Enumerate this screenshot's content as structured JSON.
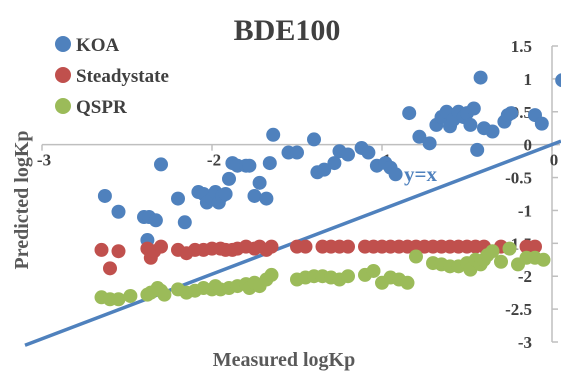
{
  "chart_data": {
    "type": "scatter",
    "title": "BDE100",
    "xlabel": "Measured logKp",
    "ylabel": "Predicted logKp",
    "xlim": [
      -3,
      0
    ],
    "ylim": [
      -3,
      1.5
    ],
    "x_ticks": [
      "-3",
      "-2",
      "-1",
      "0"
    ],
    "y_ticks": [
      "1.5",
      "1",
      "0.5",
      "0",
      "-0.5",
      "-1",
      "-1.5",
      "-2",
      "-2.5",
      "-3"
    ],
    "grid": false,
    "legend_position": "top-left",
    "annotation": "y=x",
    "reference_line": {
      "from": [
        -3.1,
        -3.05
      ],
      "to": [
        0,
        0
      ]
    },
    "colors": {
      "KOA": "#4f81bd",
      "Steadystate": "#c0504d",
      "QSPR": "#9bbb59",
      "line": "#4f81bd"
    },
    "series": [
      {
        "name": "KOA",
        "points": [
          [
            -2.63,
            -0.78
          ],
          [
            -2.55,
            -1.02
          ],
          [
            -2.4,
            -1.1
          ],
          [
            -2.37,
            -1.1
          ],
          [
            -2.33,
            -1.15
          ],
          [
            -2.38,
            -1.45
          ],
          [
            -2.3,
            -0.3
          ],
          [
            -2.2,
            -0.82
          ],
          [
            -2.16,
            -1.18
          ],
          [
            -2.08,
            -0.72
          ],
          [
            -2.05,
            -0.75
          ],
          [
            -2.03,
            -0.88
          ],
          [
            -2.0,
            -0.82
          ],
          [
            -1.98,
            -0.72
          ],
          [
            -1.96,
            -0.88
          ],
          [
            -1.94,
            -0.78
          ],
          [
            -1.92,
            -0.75
          ],
          [
            -1.9,
            -0.52
          ],
          [
            -1.88,
            -0.28
          ],
          [
            -1.85,
            -0.32
          ],
          [
            -1.8,
            -0.32
          ],
          [
            -1.78,
            -0.32
          ],
          [
            -1.75,
            -0.78
          ],
          [
            -1.72,
            -0.58
          ],
          [
            -1.68,
            -0.82
          ],
          [
            -1.66,
            -0.28
          ],
          [
            -1.64,
            0.15
          ],
          [
            -1.55,
            -0.12
          ],
          [
            -1.5,
            -0.12
          ],
          [
            -1.4,
            0.08
          ],
          [
            -1.38,
            -0.42
          ],
          [
            -1.34,
            -0.38
          ],
          [
            -1.28,
            -0.28
          ],
          [
            -1.25,
            -0.1
          ],
          [
            -1.2,
            -0.15
          ],
          [
            -1.12,
            -0.05
          ],
          [
            -1.08,
            -0.12
          ],
          [
            -1.03,
            -0.32
          ],
          [
            -0.98,
            -0.28
          ],
          [
            -0.95,
            -0.35
          ],
          [
            -0.92,
            -0.45
          ],
          [
            -0.84,
            0.48
          ],
          [
            -0.78,
            0.12
          ],
          [
            -0.72,
            0.02
          ],
          [
            -0.68,
            0.3
          ],
          [
            -0.65,
            0.42
          ],
          [
            -0.62,
            0.5
          ],
          [
            -0.6,
            0.28
          ],
          [
            -0.58,
            0.38
          ],
          [
            -0.55,
            0.5
          ],
          [
            -0.52,
            0.42
          ],
          [
            -0.5,
            0.48
          ],
          [
            -0.48,
            0.3
          ],
          [
            -0.46,
            0.55
          ],
          [
            -0.44,
            -0.08
          ],
          [
            -0.42,
            1.02
          ],
          [
            -0.4,
            0.25
          ],
          [
            -0.35,
            0.2
          ],
          [
            -0.28,
            0.35
          ],
          [
            -0.26,
            0.45
          ],
          [
            -0.24,
            0.48
          ],
          [
            -0.1,
            0.45
          ],
          [
            -0.06,
            0.32
          ],
          [
            0.06,
            0.98
          ]
        ]
      },
      {
        "name": "Steadystate",
        "points": [
          [
            -2.65,
            -1.6
          ],
          [
            -2.6,
            -1.88
          ],
          [
            -2.55,
            -1.62
          ],
          [
            -2.38,
            -1.58
          ],
          [
            -2.36,
            -1.72
          ],
          [
            -2.34,
            -1.62
          ],
          [
            -2.3,
            -1.55
          ],
          [
            -2.2,
            -1.6
          ],
          [
            -2.15,
            -1.65
          ],
          [
            -2.1,
            -1.6
          ],
          [
            -2.05,
            -1.6
          ],
          [
            -2.0,
            -1.58
          ],
          [
            -1.95,
            -1.58
          ],
          [
            -1.92,
            -1.6
          ],
          [
            -1.88,
            -1.6
          ],
          [
            -1.85,
            -1.58
          ],
          [
            -1.8,
            -1.55
          ],
          [
            -1.75,
            -1.58
          ],
          [
            -1.72,
            -1.55
          ],
          [
            -1.68,
            -1.6
          ],
          [
            -1.65,
            -1.55
          ],
          [
            -1.5,
            -1.55
          ],
          [
            -1.45,
            -1.55
          ],
          [
            -1.35,
            -1.55
          ],
          [
            -1.3,
            -1.55
          ],
          [
            -1.25,
            -1.55
          ],
          [
            -1.2,
            -1.55
          ],
          [
            -1.1,
            -1.55
          ],
          [
            -1.05,
            -1.55
          ],
          [
            -1.0,
            -1.55
          ],
          [
            -0.95,
            -1.55
          ],
          [
            -0.9,
            -1.55
          ],
          [
            -0.85,
            -1.55
          ],
          [
            -0.8,
            -1.55
          ],
          [
            -0.75,
            -1.55
          ],
          [
            -0.7,
            -1.55
          ],
          [
            -0.65,
            -1.55
          ],
          [
            -0.6,
            -1.55
          ],
          [
            -0.55,
            -1.55
          ],
          [
            -0.5,
            -1.55
          ],
          [
            -0.45,
            -1.55
          ],
          [
            -0.4,
            -1.55
          ],
          [
            -0.3,
            -1.55
          ],
          [
            -0.15,
            -1.55
          ],
          [
            -0.1,
            -1.55
          ]
        ]
      },
      {
        "name": "QSPR",
        "points": [
          [
            -2.65,
            -2.32
          ],
          [
            -2.6,
            -2.35
          ],
          [
            -2.55,
            -2.35
          ],
          [
            -2.48,
            -2.3
          ],
          [
            -2.38,
            -2.28
          ],
          [
            -2.36,
            -2.25
          ],
          [
            -2.32,
            -2.18
          ],
          [
            -2.3,
            -2.22
          ],
          [
            -2.28,
            -2.28
          ],
          [
            -2.2,
            -2.2
          ],
          [
            -2.15,
            -2.25
          ],
          [
            -2.1,
            -2.22
          ],
          [
            -2.05,
            -2.18
          ],
          [
            -2.0,
            -2.2
          ],
          [
            -1.98,
            -2.15
          ],
          [
            -1.95,
            -2.2
          ],
          [
            -1.9,
            -2.18
          ],
          [
            -1.85,
            -2.15
          ],
          [
            -1.8,
            -2.12
          ],
          [
            -1.78,
            -2.18
          ],
          [
            -1.75,
            -2.1
          ],
          [
            -1.72,
            -2.15
          ],
          [
            -1.68,
            -2.05
          ],
          [
            -1.65,
            -1.98
          ],
          [
            -1.5,
            -2.05
          ],
          [
            -1.45,
            -2.02
          ],
          [
            -1.4,
            -2.0
          ],
          [
            -1.35,
            -2.0
          ],
          [
            -1.3,
            -2.02
          ],
          [
            -1.25,
            -2.05
          ],
          [
            -1.2,
            -2.0
          ],
          [
            -1.1,
            -1.98
          ],
          [
            -1.05,
            -1.92
          ],
          [
            -1.0,
            -2.1
          ],
          [
            -0.95,
            -2.02
          ],
          [
            -0.9,
            -2.05
          ],
          [
            -0.85,
            -2.1
          ],
          [
            -0.8,
            -1.7
          ],
          [
            -0.7,
            -1.8
          ],
          [
            -0.65,
            -1.82
          ],
          [
            -0.6,
            -1.85
          ],
          [
            -0.55,
            -1.85
          ],
          [
            -0.5,
            -1.8
          ],
          [
            -0.48,
            -1.9
          ],
          [
            -0.45,
            -1.75
          ],
          [
            -0.42,
            -1.82
          ],
          [
            -0.4,
            -1.75
          ],
          [
            -0.38,
            -1.68
          ],
          [
            -0.35,
            -1.62
          ],
          [
            -0.3,
            -1.78
          ],
          [
            -0.25,
            -1.58
          ],
          [
            -0.2,
            -1.82
          ],
          [
            -0.15,
            -1.72
          ],
          [
            -0.1,
            -1.72
          ],
          [
            -0.05,
            -1.75
          ]
        ]
      }
    ]
  }
}
